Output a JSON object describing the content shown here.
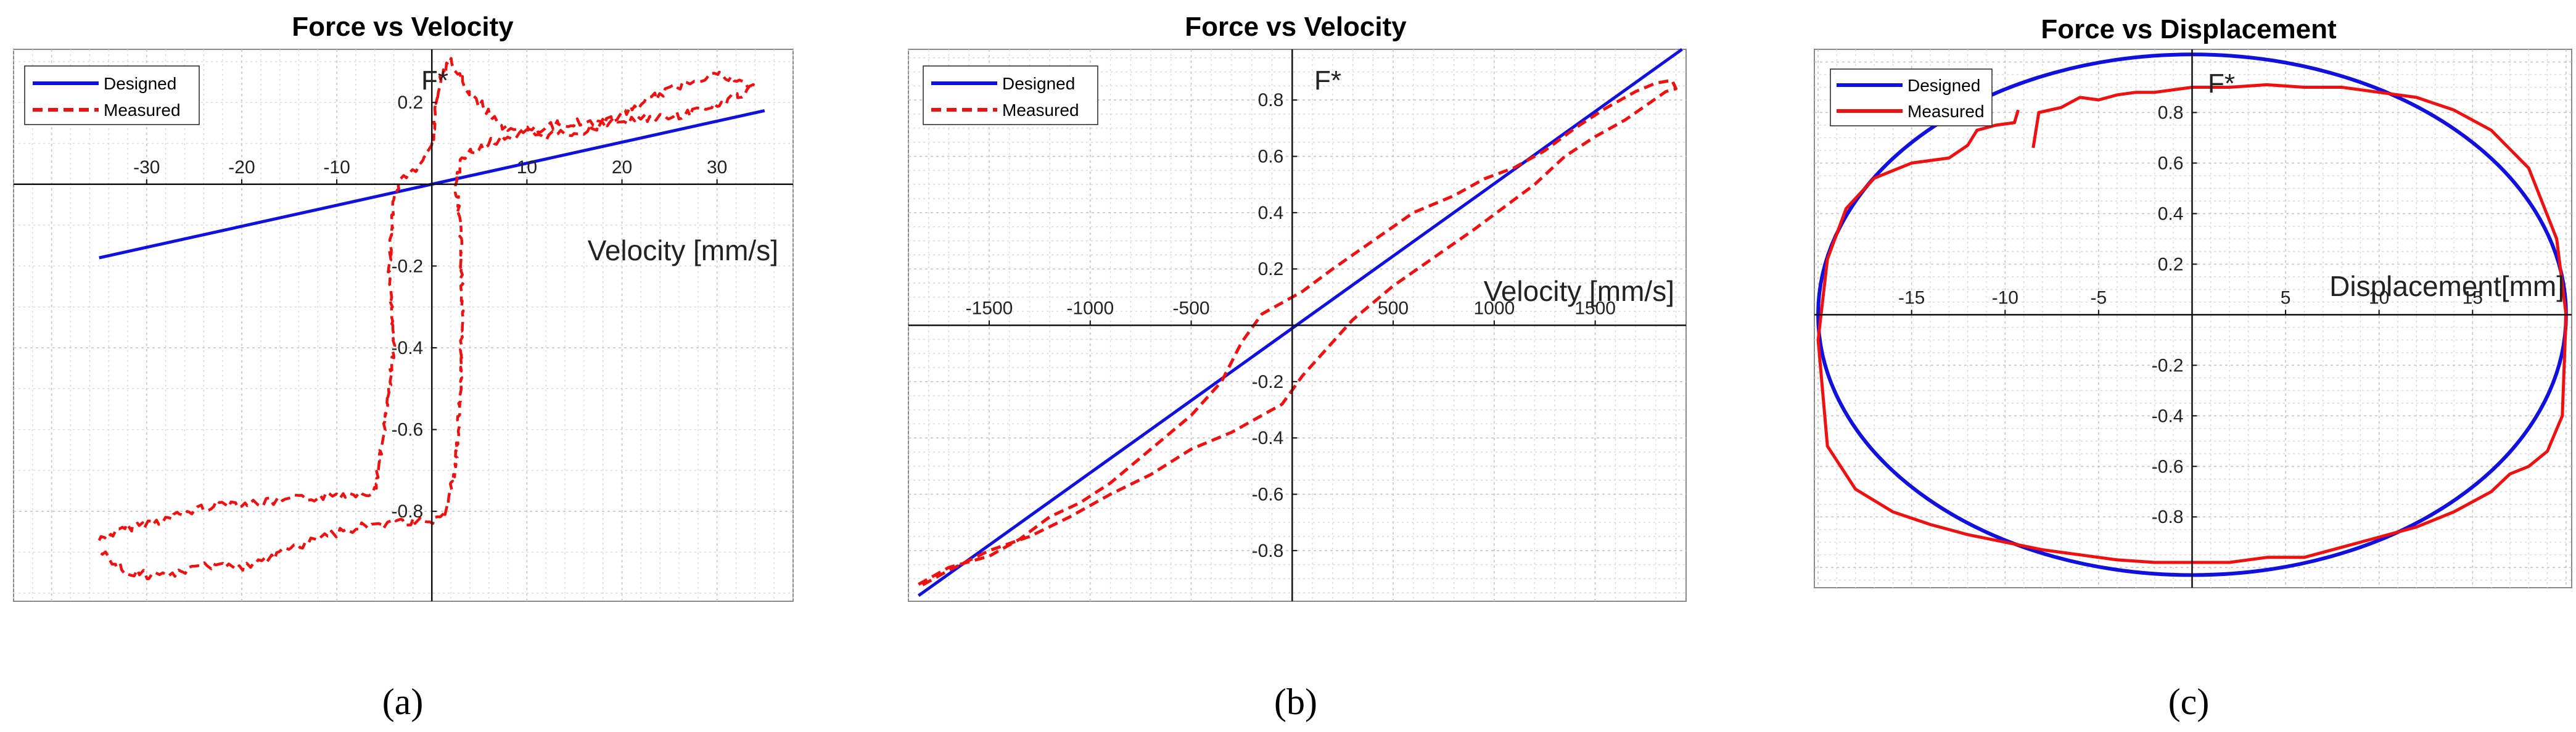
{
  "colors": {
    "designed": "#1010e0",
    "measured": "#f01010"
  },
  "chart_data": [
    {
      "id": "a",
      "type": "line",
      "title": "Force vs Velocity",
      "caption": "(a)",
      "xlabel": "Velocity [mm/s]",
      "ylabel": "F*",
      "xlim": [
        -44,
        38
      ],
      "ylim": [
        -1.02,
        0.33
      ],
      "xticks": [
        -30,
        -20,
        -10,
        10,
        20,
        30
      ],
      "yticks": [
        0.2,
        -0.2,
        -0.4,
        -0.6,
        -0.8
      ],
      "legend": [
        "Designed",
        "Measured"
      ],
      "series": [
        {
          "name": "Designed",
          "style": "solid",
          "color": "#1010e0",
          "x": [
            -35,
            35
          ],
          "y": [
            -0.18,
            0.18
          ]
        },
        {
          "name": "Measured",
          "style": "dashed",
          "color": "#f01010",
          "noisy": true,
          "x": [
            -35,
            -32,
            -28,
            -24,
            -22,
            -18,
            -14,
            -10,
            -6,
            -5,
            -4,
            -4.5,
            -4,
            -3.5,
            -3,
            -2,
            -1,
            0,
            0.5,
            1,
            2,
            4,
            8,
            12,
            16,
            20,
            24,
            28,
            30,
            32,
            34,
            30,
            26,
            22,
            18,
            14,
            10,
            6,
            4,
            3,
            2.5,
            3,
            3.2,
            3,
            2.5,
            2,
            1.5,
            1,
            0,
            -4,
            -8,
            -12,
            -16,
            -20,
            -24,
            -28,
            -32,
            -35
          ],
          "y": [
            -0.87,
            -0.84,
            -0.82,
            -0.79,
            -0.78,
            -0.78,
            -0.77,
            -0.76,
            -0.75,
            -0.6,
            -0.4,
            -0.2,
            -0.05,
            0.0,
            0.02,
            0.03,
            0.05,
            0.1,
            0.2,
            0.26,
            0.3,
            0.22,
            0.13,
            0.12,
            0.13,
            0.17,
            0.22,
            0.26,
            0.27,
            0.25,
            0.24,
            0.19,
            0.17,
            0.16,
            0.15,
            0.15,
            0.13,
            0.1,
            0.08,
            0.05,
            0.0,
            -0.1,
            -0.3,
            -0.5,
            -0.7,
            -0.75,
            -0.8,
            -0.82,
            -0.82,
            -0.83,
            -0.84,
            -0.87,
            -0.9,
            -0.94,
            -0.93,
            -0.96,
            -0.95,
            -0.9
          ]
        }
      ]
    },
    {
      "id": "b",
      "type": "line",
      "title": "Force vs Velocity",
      "caption": "(b)",
      "xlabel": "Velocity [mm/s]",
      "ylabel": "F*",
      "xlim": [
        -1900,
        1950
      ],
      "ylim": [
        -0.98,
        0.98
      ],
      "xticks": [
        -1500,
        -1000,
        -500,
        500,
        1000,
        1500
      ],
      "yticks": [
        0.8,
        0.6,
        0.4,
        0.2,
        -0.2,
        -0.4,
        -0.6,
        -0.8
      ],
      "legend": [
        "Designed",
        "Measured"
      ],
      "series": [
        {
          "name": "Designed",
          "style": "solid",
          "color": "#1010e0",
          "x": [
            -1850,
            1930
          ],
          "y": [
            -0.96,
            0.98
          ]
        },
        {
          "name": "Measured",
          "style": "dashed",
          "color": "#f01010",
          "x": [
            -1850,
            -1700,
            -1500,
            -1350,
            -1200,
            -1050,
            -900,
            -700,
            -500,
            -350,
            -250,
            -150,
            -50,
            50,
            200,
            400,
            600,
            800,
            950,
            1100,
            1250,
            1400,
            1550,
            1700,
            1800,
            1880,
            1900,
            1850,
            1750,
            1650,
            1500,
            1350,
            1200,
            1050,
            900,
            700,
            500,
            300,
            150,
            50,
            -50,
            -150,
            -300,
            -500,
            -700,
            -900,
            -1100,
            -1300,
            -1500,
            -1700,
            -1850
          ],
          "y": [
            -0.92,
            -0.86,
            -0.82,
            -0.76,
            -0.68,
            -0.63,
            -0.56,
            -0.44,
            -0.32,
            -0.2,
            -0.06,
            0.04,
            0.08,
            0.12,
            0.2,
            0.3,
            0.4,
            0.46,
            0.52,
            0.56,
            0.62,
            0.7,
            0.77,
            0.83,
            0.86,
            0.87,
            0.84,
            0.83,
            0.78,
            0.73,
            0.67,
            0.6,
            0.5,
            0.42,
            0.34,
            0.24,
            0.14,
            0.02,
            -0.1,
            -0.18,
            -0.28,
            -0.32,
            -0.38,
            -0.44,
            -0.53,
            -0.6,
            -0.68,
            -0.75,
            -0.8,
            -0.87,
            -0.93
          ]
        }
      ]
    },
    {
      "id": "c",
      "type": "line",
      "title": "Force vs Displacement",
      "caption": "(c)",
      "xlabel": "Displacement[mm]",
      "ylabel": "F*",
      "xlim": [
        -20.2,
        20.3
      ],
      "ylim": [
        -1.08,
        1.05
      ],
      "xticks": [
        -15,
        -10,
        -5,
        5,
        10,
        15
      ],
      "yticks": [
        0.8,
        0.6,
        0.4,
        0.2,
        -0.2,
        -0.4,
        -0.6,
        -0.8
      ],
      "legend": [
        "Designed",
        "Measured"
      ],
      "series": [
        {
          "name": "Designed",
          "style": "solid",
          "color": "#1010e0",
          "ellipse": true,
          "cx": 0,
          "cy": 0,
          "rx": 20,
          "ry": 1.03
        },
        {
          "name": "Measured",
          "style": "solid",
          "color": "#f01010",
          "x": [
            -8.5,
            -8.2,
            -7,
            -6,
            -5,
            -4,
            -3,
            -2,
            -1,
            0,
            2,
            4,
            6,
            8,
            10,
            12,
            14,
            16,
            18,
            19.5,
            20,
            19.8,
            19,
            18,
            17,
            16,
            14,
            12,
            10,
            8,
            6,
            4,
            2,
            0,
            -2,
            -4,
            -6,
            -8,
            -10,
            -12,
            -14,
            -16,
            -18,
            -19.5,
            -20,
            -19.5,
            -18.5,
            -17,
            -15,
            -13,
            -12,
            -11.5,
            -10.5,
            -9.5,
            -9.3
          ],
          "y": [
            0.66,
            0.8,
            0.82,
            0.86,
            0.85,
            0.87,
            0.88,
            0.88,
            0.89,
            0.9,
            0.9,
            0.91,
            0.9,
            0.9,
            0.88,
            0.86,
            0.81,
            0.73,
            0.58,
            0.3,
            0.0,
            -0.4,
            -0.54,
            -0.6,
            -0.63,
            -0.7,
            -0.78,
            -0.84,
            -0.88,
            -0.92,
            -0.96,
            -0.96,
            -0.98,
            -0.98,
            -0.98,
            -0.97,
            -0.95,
            -0.93,
            -0.9,
            -0.87,
            -0.83,
            -0.78,
            -0.69,
            -0.52,
            -0.1,
            0.22,
            0.42,
            0.54,
            0.6,
            0.62,
            0.67,
            0.73,
            0.75,
            0.76,
            0.81
          ]
        }
      ]
    }
  ]
}
